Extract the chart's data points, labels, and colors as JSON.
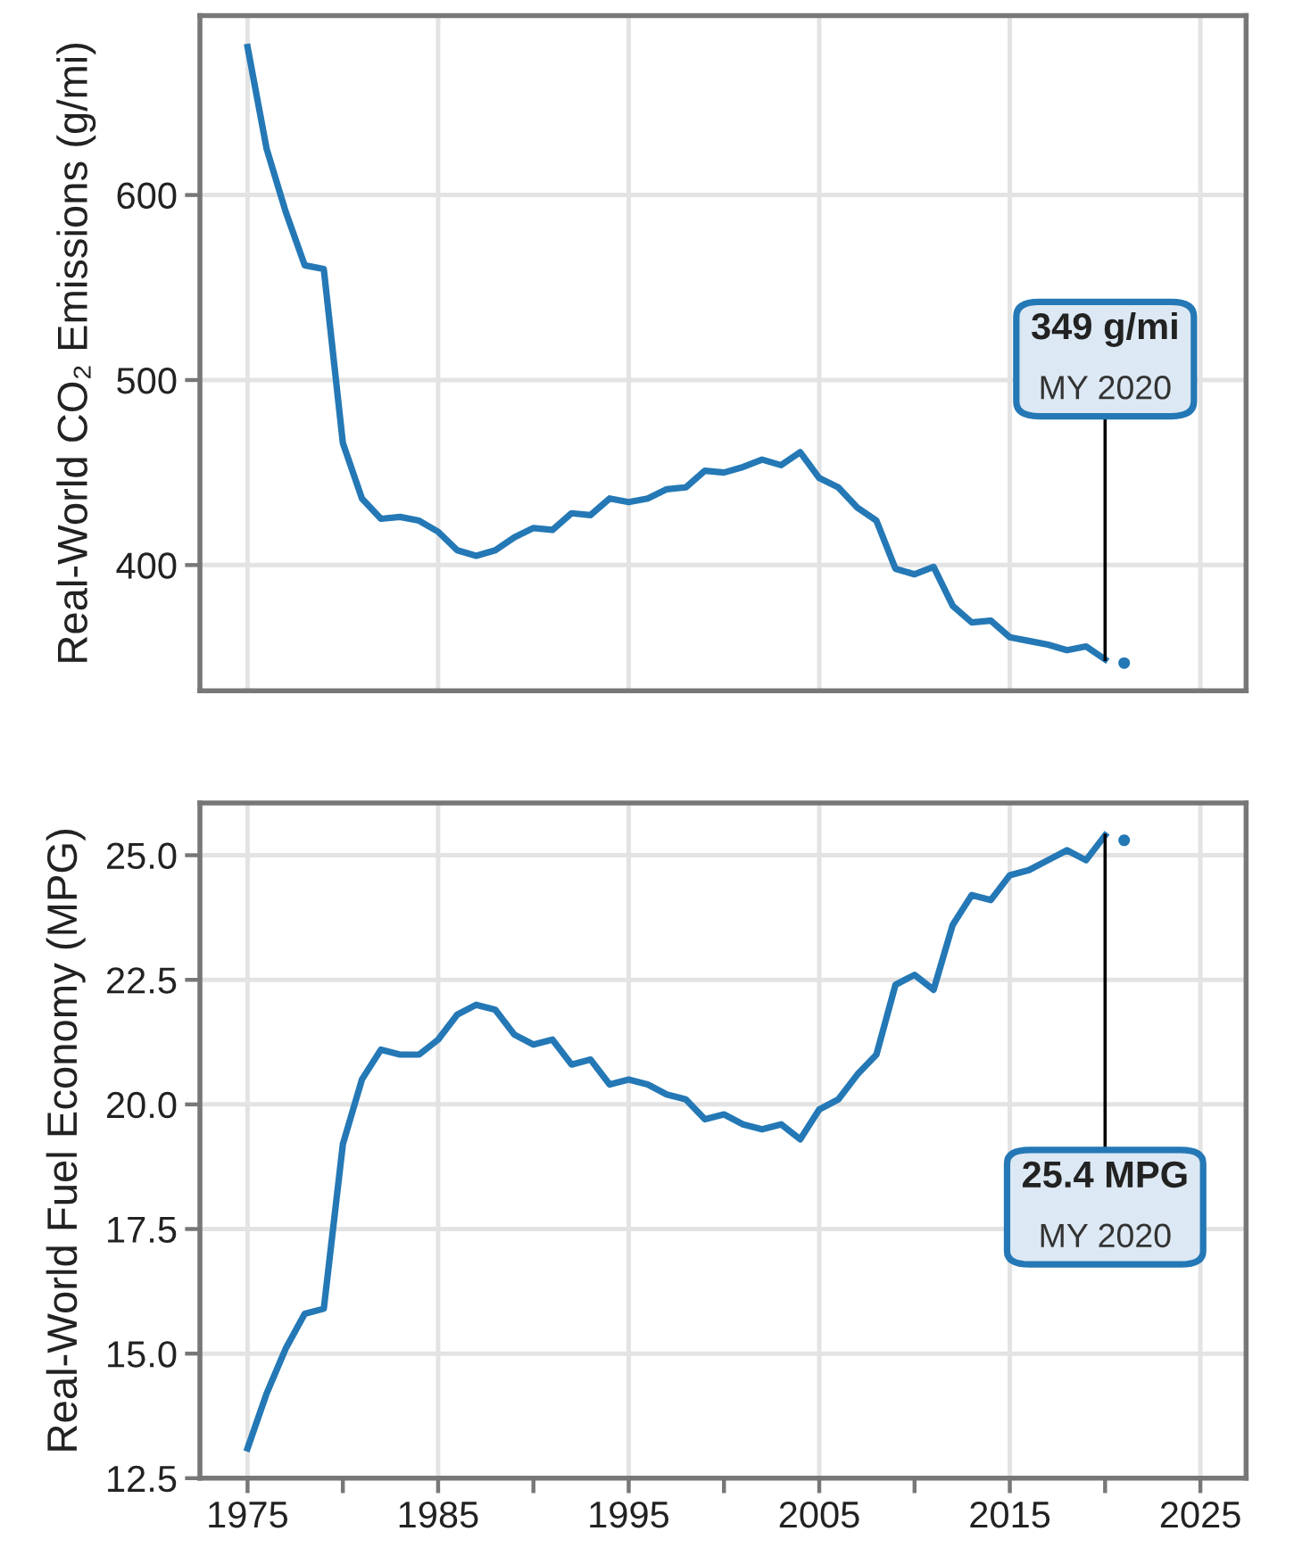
{
  "chart_data": [
    {
      "type": "line",
      "ylabel": "Real-World CO₂ Emissions (g/mi)",
      "x": [
        1975,
        1976,
        1977,
        1978,
        1979,
        1980,
        1981,
        1982,
        1983,
        1984,
        1985,
        1986,
        1987,
        1988,
        1989,
        1990,
        1991,
        1992,
        1993,
        1994,
        1995,
        1996,
        1997,
        1998,
        1999,
        2000,
        2001,
        2002,
        2003,
        2004,
        2005,
        2006,
        2007,
        2008,
        2009,
        2010,
        2011,
        2012,
        2013,
        2014,
        2015,
        2016,
        2017,
        2018,
        2019,
        2020
      ],
      "series": [
        {
          "color": "#2478b5",
          "values": [
            680,
            625,
            591,
            562,
            560,
            466,
            436,
            425,
            426,
            424,
            418,
            408,
            405,
            408,
            415,
            420,
            419,
            428,
            427,
            436,
            434,
            436,
            441,
            442,
            451,
            450,
            453,
            457,
            454,
            461,
            447,
            442,
            431,
            424,
            398,
            395,
            399,
            378,
            369,
            370,
            361,
            359,
            357,
            354,
            356,
            349
          ]
        },
        {
          "type": "scatter",
          "color": "#2478b5",
          "x": [
            2021
          ],
          "values": [
            347
          ]
        }
      ],
      "xlim": [
        1972.5,
        2027.4
      ],
      "ylim": [
        332,
        697
      ],
      "yticks": [
        400,
        500,
        600
      ],
      "xticks": [
        1975,
        1985,
        1995,
        2005,
        2015,
        2025
      ],
      "tick_labels": "y",
      "grid": true,
      "annotations": [
        {
          "text": "349 g/mi\nMY 2020",
          "x": 2020,
          "y": 349
        }
      ]
    },
    {
      "type": "line",
      "ylabel": "Real-World Fuel Economy (MPG)",
      "x": [
        1975,
        1976,
        1977,
        1978,
        1979,
        1980,
        1981,
        1982,
        1983,
        1984,
        1985,
        1986,
        1987,
        1988,
        1989,
        1990,
        1991,
        1992,
        1993,
        1994,
        1995,
        1996,
        1997,
        1998,
        1999,
        2000,
        2001,
        2002,
        2003,
        2004,
        2005,
        2006,
        2007,
        2008,
        2009,
        2010,
        2011,
        2012,
        2013,
        2014,
        2015,
        2016,
        2017,
        2018,
        2019,
        2020
      ],
      "series": [
        {
          "color": "#2478b5",
          "values": [
            13.1,
            14.2,
            15.1,
            15.8,
            15.9,
            19.2,
            20.5,
            21.1,
            21.0,
            21.0,
            21.3,
            21.8,
            22.0,
            21.9,
            21.4,
            21.2,
            21.3,
            20.8,
            20.9,
            20.4,
            20.5,
            20.4,
            20.2,
            20.1,
            19.7,
            19.8,
            19.6,
            19.5,
            19.6,
            19.3,
            19.9,
            20.1,
            20.6,
            21.0,
            22.4,
            22.6,
            22.3,
            23.6,
            24.2,
            24.1,
            24.6,
            24.7,
            24.9,
            25.1,
            24.9,
            25.4
          ]
        },
        {
          "type": "scatter",
          "color": "#2478b5",
          "x": [
            2021
          ],
          "values": [
            25.3
          ]
        }
      ],
      "xlim": [
        1972.5,
        2027.4
      ],
      "ylim": [
        12.5,
        26.05
      ],
      "yticks": [
        {
          "value": 12.5,
          "label": "12.5"
        },
        {
          "value": 15,
          "label": "15.0"
        },
        {
          "value": 17.5,
          "label": "17.5"
        },
        {
          "value": 20,
          "label": "20.0"
        },
        {
          "value": 22.5,
          "label": "22.5"
        },
        {
          "value": 25,
          "label": "25.0"
        }
      ],
      "xticks": [
        1975,
        {
          "value": 1980,
          "label": null
        },
        1985,
        {
          "value": 1990,
          "label": null
        },
        1995,
        {
          "value": 2000,
          "label": null
        },
        2005,
        {
          "value": 2010,
          "label": null
        },
        2015,
        {
          "value": 2020,
          "label": null
        },
        2025
      ],
      "grid": true,
      "annotations": [
        {
          "text": "25.4 MPG\nMY 2020",
          "x": 2020,
          "y": 25.4
        }
      ]
    }
  ]
}
